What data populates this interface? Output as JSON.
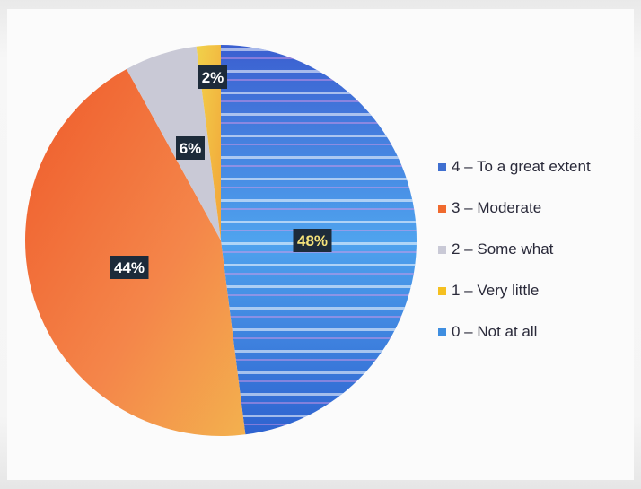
{
  "chart_data": {
    "type": "pie",
    "slices": [
      {
        "label": "4 – To a great extent",
        "value": 48,
        "color": "#3f6fd0",
        "data_label": "48%"
      },
      {
        "label": "3 – Moderate",
        "value": 44,
        "color": "#f06a2e",
        "data_label": "44%"
      },
      {
        "label": "2 – Some what",
        "value": 6,
        "color": "#c9c9d6",
        "data_label": "6%"
      },
      {
        "label": "1 – Very little",
        "value": 2,
        "color": "#f5c020",
        "data_label": "2%"
      },
      {
        "label": "0 – Not at all",
        "value": 0,
        "color": "#3f8ee0",
        "data_label": ""
      }
    ],
    "legend_position": "right"
  }
}
